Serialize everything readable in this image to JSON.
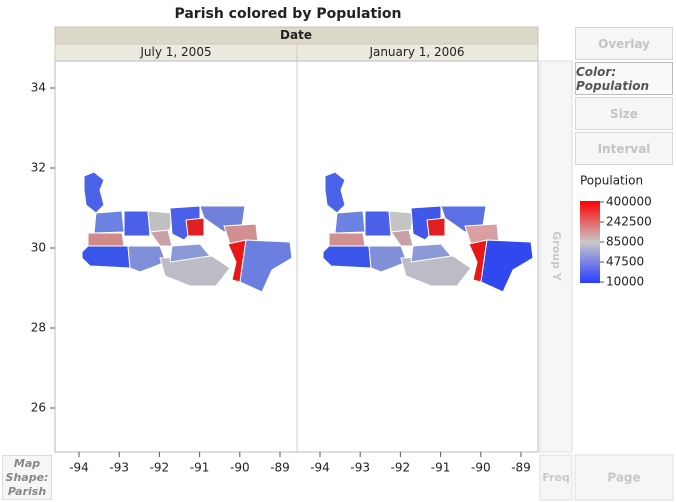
{
  "title": "Parish colored by Population",
  "group_x": {
    "label": "Date",
    "levels": [
      "July 1, 2005",
      "January 1, 2006"
    ]
  },
  "y_axis": {
    "ticks": [
      34,
      32,
      30,
      28,
      26
    ]
  },
  "x_axis": {
    "ticks": [
      -94,
      -93,
      -92,
      -91,
      -90,
      -89
    ]
  },
  "buttons": [
    "Overlay",
    "Color: Population",
    "Size",
    "Interval"
  ],
  "group_y": "Group Y",
  "legend": {
    "title": "Population",
    "labels": [
      400000,
      242500,
      85000,
      47500,
      10000
    ]
  },
  "map_shape": "Map Shape: Parish",
  "freq": "Freq",
  "page": "Page"
}
